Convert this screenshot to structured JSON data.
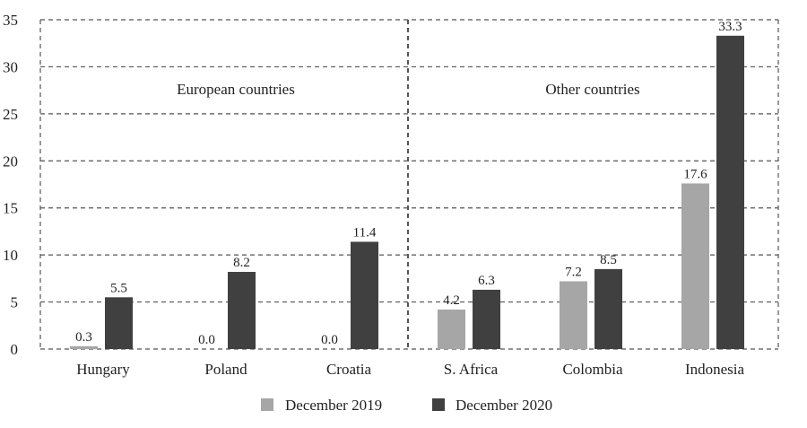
{
  "chart_data": {
    "type": "bar",
    "title": "",
    "xlabel": "",
    "ylabel": "",
    "ylim": [
      0,
      35
    ],
    "yticks": [
      "0",
      "5",
      "10",
      "15",
      "20",
      "25",
      "30",
      "35"
    ],
    "grid": true,
    "categories": [
      "Hungary",
      "Poland",
      "Croatia",
      "S. Africa",
      "Colombia",
      "Indonesia"
    ],
    "series": [
      {
        "name": "December 2019",
        "color": "#a6a6a6",
        "values": [
          0.3,
          0.0,
          0.0,
          4.2,
          7.2,
          17.6
        ],
        "labels": [
          "0.3",
          "0.0",
          "0.0",
          "4.2",
          "7.2",
          "17.6"
        ]
      },
      {
        "name": "December 2020",
        "color": "#404040",
        "values": [
          5.5,
          8.2,
          11.4,
          6.3,
          8.5,
          33.3
        ],
        "labels": [
          "5.5",
          "8.2",
          "11.4",
          "6.3",
          "8.5",
          "33.3"
        ]
      }
    ],
    "annotations": [
      "European countries",
      "Other countries"
    ],
    "legend_position": "bottom"
  }
}
